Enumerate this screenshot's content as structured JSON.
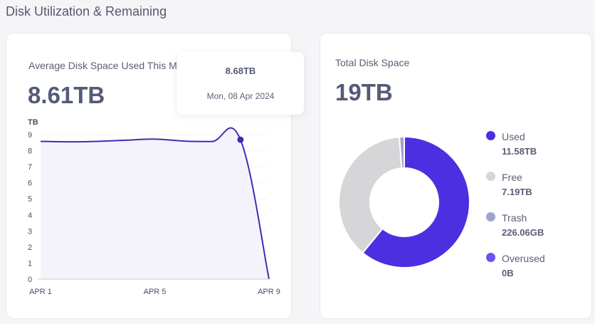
{
  "section_title": "Disk Utilization & Remaining",
  "avg_card": {
    "label": "Average Disk Space Used This Month",
    "value": "8.61TB",
    "tooltip": {
      "value": "8.68TB",
      "date": "Mon, 08 Apr 2024"
    }
  },
  "total_card": {
    "label": "Total Disk Space",
    "value": "19TB",
    "legend": [
      {
        "name": "Used",
        "value": "11.58TB",
        "color": "#4b2fe0"
      },
      {
        "name": "Free",
        "value": "7.19TB",
        "color": "#d6d6d8"
      },
      {
        "name": "Trash",
        "value": "226.06GB",
        "color": "#9ea2cf"
      },
      {
        "name": "Overused",
        "value": "0B",
        "color": "#6655f0"
      }
    ]
  },
  "chart_data": [
    {
      "type": "area",
      "ylabel": "TB",
      "ylim": [
        0,
        9
      ],
      "yticks": [
        "0",
        "1",
        "2",
        "3",
        "4",
        "5",
        "6",
        "7",
        "8",
        "9"
      ],
      "xticks": [
        "APR 1",
        "APR 5",
        "APR 9"
      ],
      "x": [
        "Apr 1",
        "Apr 2",
        "Apr 3",
        "Apr 4",
        "Apr 5",
        "Apr 6",
        "Apr 7",
        "Apr 8",
        "Apr 9"
      ],
      "series": [
        {
          "values": [
            8.58,
            8.55,
            8.58,
            8.65,
            8.72,
            8.6,
            8.57,
            8.68,
            0
          ]
        }
      ],
      "highlight": {
        "x": "Apr 8",
        "y": 8.68
      },
      "color": "#3b2fb4",
      "fill": "#f4f3fc",
      "grid": true
    },
    {
      "type": "pie",
      "categories": [
        "Used",
        "Free",
        "Trash",
        "Overused"
      ],
      "values": [
        11.58,
        7.19,
        0.226,
        0
      ],
      "colors": [
        "#4b2fe0",
        "#d6d6d8",
        "#9ea2cf",
        "#6655f0"
      ]
    }
  ]
}
